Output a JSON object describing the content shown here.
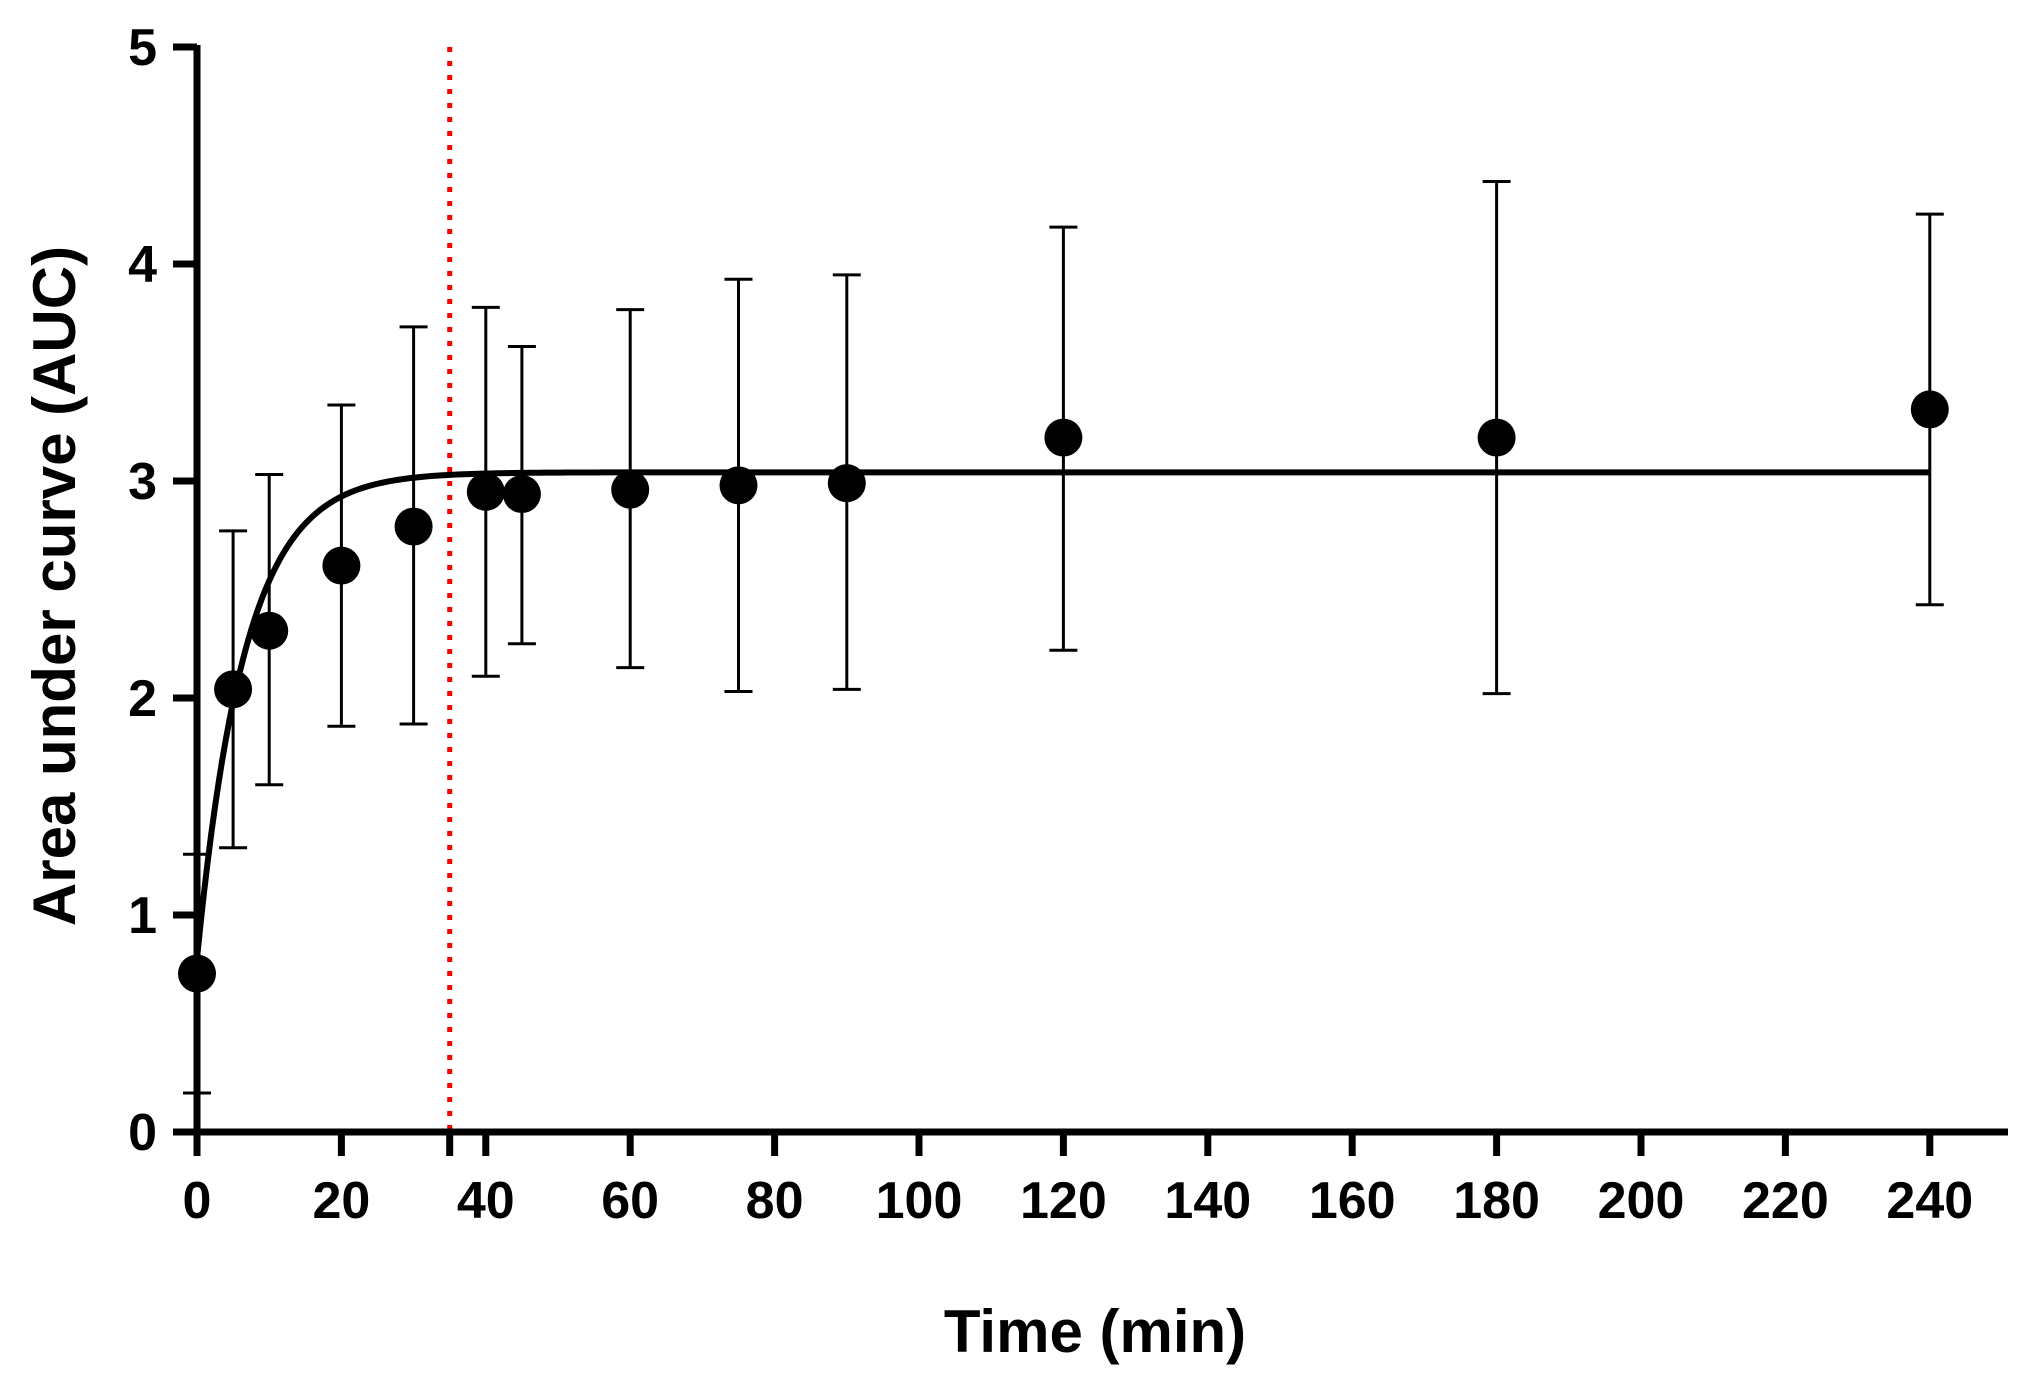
{
  "chart_data": {
    "type": "scatter",
    "title": "",
    "xlabel": "Time (min)",
    "ylabel": "Area under curve (AUC)",
    "xlim": [
      0,
      250
    ],
    "ylim": [
      0,
      5
    ],
    "x_ticks": [
      0,
      20,
      40,
      60,
      80,
      100,
      120,
      140,
      160,
      180,
      200,
      220,
      240
    ],
    "x_minor_ticks": [
      35
    ],
    "y_ticks": [
      0,
      1,
      2,
      3,
      4,
      5
    ],
    "grid": false,
    "legend": "none",
    "series": [
      {
        "name": "AUC",
        "marker": "circle",
        "color": "#000000",
        "points": [
          {
            "x": 0,
            "y": 0.73,
            "err_low": 0.18,
            "err_high": 1.28
          },
          {
            "x": 5,
            "y": 2.04,
            "err_low": 1.31,
            "err_high": 2.77
          },
          {
            "x": 10,
            "y": 2.31,
            "err_low": 1.6,
            "err_high": 3.03
          },
          {
            "x": 20,
            "y": 2.61,
            "err_low": 1.87,
            "err_high": 3.35
          },
          {
            "x": 30,
            "y": 2.79,
            "err_low": 1.88,
            "err_high": 3.71
          },
          {
            "x": 40,
            "y": 2.95,
            "err_low": 2.1,
            "err_high": 3.8
          },
          {
            "x": 45,
            "y": 2.94,
            "err_low": 2.25,
            "err_high": 3.62
          },
          {
            "x": 60,
            "y": 2.96,
            "err_low": 2.14,
            "err_high": 3.79
          },
          {
            "x": 75,
            "y": 2.98,
            "err_low": 2.03,
            "err_high": 3.93
          },
          {
            "x": 90,
            "y": 2.99,
            "err_low": 2.04,
            "err_high": 3.95
          },
          {
            "x": 120,
            "y": 3.2,
            "err_low": 2.22,
            "err_high": 4.17
          },
          {
            "x": 180,
            "y": 3.2,
            "err_low": 2.02,
            "err_high": 4.38
          },
          {
            "x": 240,
            "y": 3.33,
            "err_low": 2.43,
            "err_high": 4.23
          }
        ]
      }
    ],
    "fit_curve": {
      "type": "one-phase exponential association",
      "y0": 0.8,
      "plateau": 3.04,
      "k": 0.15,
      "x_range": [
        0,
        240
      ],
      "color": "#000000"
    },
    "reference_line": {
      "orientation": "vertical",
      "x": 35,
      "style": "dotted",
      "color": "#ff0000"
    }
  }
}
